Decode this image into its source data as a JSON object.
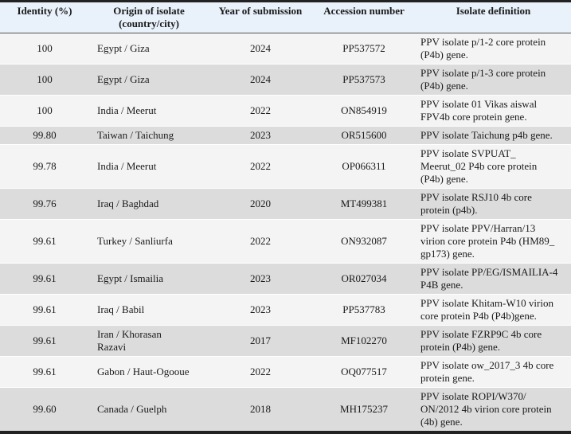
{
  "headers": {
    "identity": "Identity (%)",
    "origin": "Origin of isolate\n(country/city)",
    "year": "Year of submission",
    "accession": "Accession number",
    "definition": "Isolate definition"
  },
  "rows": [
    {
      "identity": "100",
      "origin": "Egypt / Giza",
      "year": "2024",
      "accession": "PP537572",
      "definition": "PPV isolate p/1-2 core protein\n(P4b) gene."
    },
    {
      "identity": "100",
      "origin": "Egypt / Giza",
      "year": "2024",
      "accession": "PP537573",
      "definition": "PPV isolate p/1-3 core protein\n(P4b) gene."
    },
    {
      "identity": "100",
      "origin": "India / Meerut",
      "year": "2022",
      "accession": "ON854919",
      "definition": "PPV isolate 01 Vikas aiswal\nFPV4b core protein gene."
    },
    {
      "identity": "99.80",
      "origin": "Taiwan / Taichung",
      "year": "2023",
      "accession": "OR515600",
      "definition": "PPV isolate Taichung p4b gene."
    },
    {
      "identity": "99.78",
      "origin": "India / Meerut",
      "year": "2022",
      "accession": "OP066311",
      "definition": "PPV isolate SVPUAT_\nMeerut_02 P4b core protein\n(P4b) gene."
    },
    {
      "identity": "99.76",
      "origin": "Iraq / Baghdad",
      "year": "2020",
      "accession": "MT499381",
      "definition": "PPV isolate RSJ10 4b core\nprotein (p4b)."
    },
    {
      "identity": "99.61",
      "origin": "Turkey / Sanliurfa",
      "year": "2022",
      "accession": "ON932087",
      "definition": "PPV isolate PPV/Harran/13\nvirion core protein P4b (HM89_\ngp173) gene."
    },
    {
      "identity": "99.61",
      "origin": "Egypt / Ismailia",
      "year": "2023",
      "accession": "OR027034",
      "definition": "PPV isolate PP/EG/ISMAILIA-4\nP4B gene."
    },
    {
      "identity": "99.61",
      "origin": "Iraq / Babil",
      "year": "2023",
      "accession": "PP537783",
      "definition": "PPV isolate Khitam-W10 virion\ncore protein P4b (P4b)gene."
    },
    {
      "identity": "99.61",
      "origin": "Iran / Khorasan\nRazavi",
      "year": "2017",
      "accession": "MF102270",
      "definition": "PPV isolate FZRP9C 4b core\nprotein (P4b) gene."
    },
    {
      "identity": "99.61",
      "origin": "Gabon / Haut-Ogooue",
      "year": "2022",
      "accession": "OQ077517",
      "definition": "PPV isolate ow_2017_3 4b core\nprotein gene."
    },
    {
      "identity": "99.60",
      "origin": "Canada / Guelph",
      "year": "2018",
      "accession": "MH175237",
      "definition": "PPV isolate ROPI/W370/\nON/2012 4b virion core protein\n(4b) gene."
    }
  ]
}
